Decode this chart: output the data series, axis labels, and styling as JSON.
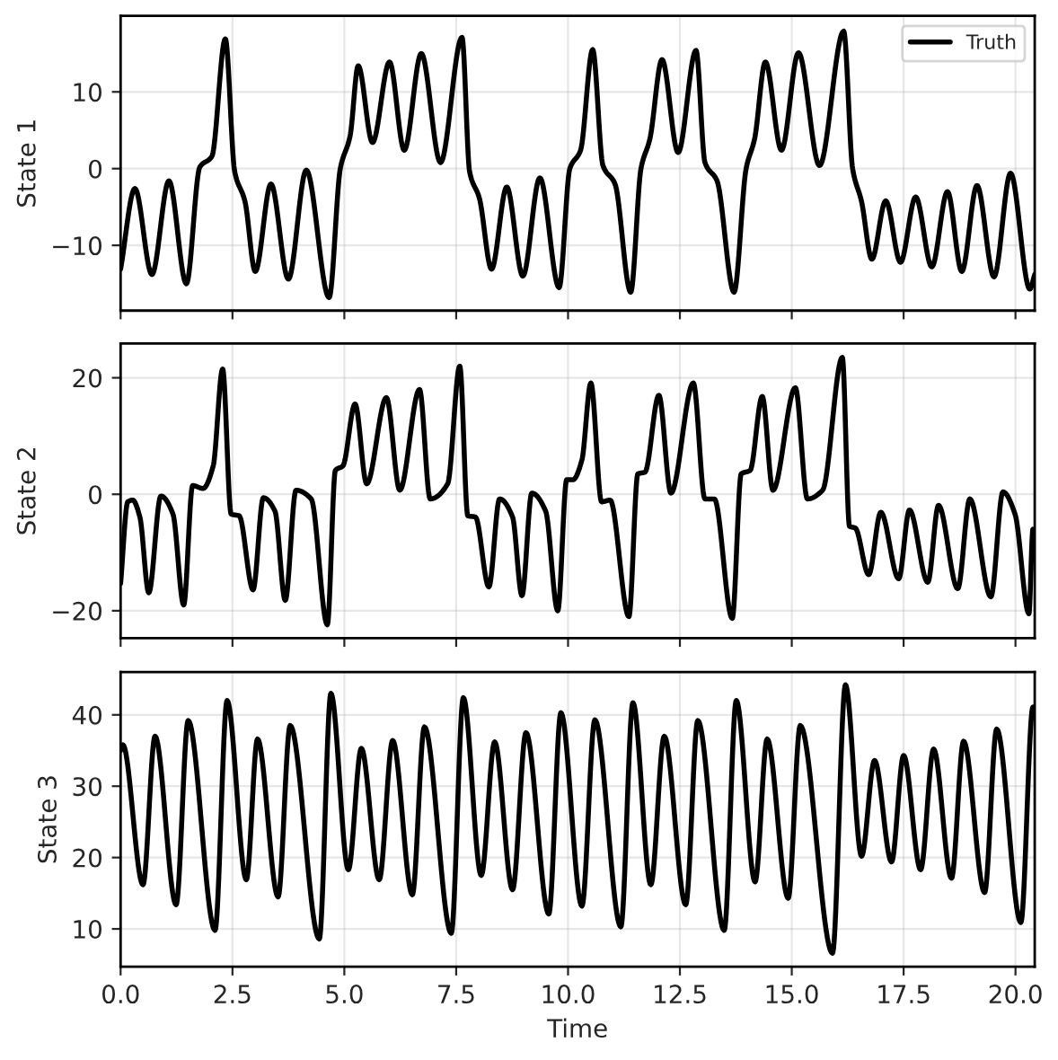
{
  "chart_data": [
    {
      "type": "line",
      "ylabel": "State 1",
      "xlim": [
        0,
        20.43
      ],
      "ylim": [
        -18.5,
        19.9
      ],
      "yticks": [
        -10,
        0,
        10
      ],
      "xticks": [
        {
          "value": 0,
          "label": null
        },
        {
          "value": 2.5,
          "label": null
        },
        {
          "value": 5,
          "label": null
        },
        {
          "value": 7.5,
          "label": null
        },
        {
          "value": 10,
          "label": null
        },
        {
          "value": 12.5,
          "label": null
        },
        {
          "value": 15,
          "label": null
        },
        {
          "value": 17.5,
          "label": null
        },
        {
          "value": 20,
          "label": null
        }
      ],
      "grid": true,
      "tick_labels": "y",
      "legend": "top right",
      "x": [
        0,
        0.32,
        0.7,
        1.08,
        1.47,
        1.77,
        2.04,
        2.34,
        2.55,
        2.78,
        3.01,
        3.36,
        3.75,
        4.15,
        4.66,
        4.91,
        5.13,
        5.31,
        5.63,
        6.01,
        6.34,
        6.72,
        7.15,
        7.63,
        7.8,
        8.02,
        8.29,
        8.63,
        8.99,
        9.37,
        9.8,
        10.04,
        10.28,
        10.55,
        10.78,
        11.05,
        11.4,
        11.63,
        11.83,
        12.1,
        12.46,
        12.86,
        13.06,
        13.33,
        13.71,
        13.98,
        14.17,
        14.41,
        14.77,
        15.15,
        15.62,
        16.16,
        16.36,
        16.56,
        16.79,
        17.1,
        17.43,
        17.77,
        18.13,
        18.48,
        18.8,
        19.14,
        19.52,
        19.89,
        20.32,
        20.43
      ],
      "series": [
        {
          "name": "Truth",
          "color": "#000000",
          "values": [
            -13.1,
            -2.6,
            -13.8,
            -1.6,
            -15.0,
            0.2,
            1.6,
            16.9,
            -0.4,
            -4.3,
            -13.4,
            -2.0,
            -14.4,
            -0.2,
            -16.8,
            0,
            4.3,
            13.4,
            3.4,
            13.9,
            2.4,
            15.0,
            0.8,
            17.1,
            -0.4,
            -3.9,
            -13.1,
            -2.4,
            -14.0,
            -1.2,
            -15.5,
            0,
            2.4,
            15.5,
            0.4,
            -2.0,
            -16.1,
            0,
            3.9,
            14.2,
            2.1,
            15.4,
            0.8,
            -1.6,
            -16.1,
            0,
            3.9,
            13.9,
            2.4,
            15.1,
            0.4,
            17.9,
            0,
            -4.3,
            -11.8,
            -4.2,
            -12.2,
            -3.7,
            -12.8,
            -3.0,
            -13.4,
            -2.2,
            -14.1,
            -0.6,
            -15.7,
            -13.8
          ]
        }
      ]
    },
    {
      "type": "line",
      "ylabel": "State 2",
      "xlim": [
        0,
        20.43
      ],
      "ylim": [
        -24.7,
        25.9
      ],
      "yticks": [
        -20,
        0,
        20
      ],
      "xticks": [
        {
          "value": 0,
          "label": null
        },
        {
          "value": 2.5,
          "label": null
        },
        {
          "value": 5,
          "label": null
        },
        {
          "value": 7.5,
          "label": null
        },
        {
          "value": 10,
          "label": null
        },
        {
          "value": 12.5,
          "label": null
        },
        {
          "value": 15,
          "label": null
        },
        {
          "value": 17.5,
          "label": null
        },
        {
          "value": 20,
          "label": null
        }
      ],
      "grid": true,
      "tick_labels": "y",
      "x": [
        0,
        0.16,
        0.27,
        0.43,
        0.63,
        0.9,
        1.17,
        1.41,
        1.61,
        1.84,
        2.07,
        2.28,
        2.47,
        2.65,
        2.96,
        3.19,
        3.45,
        3.68,
        3.92,
        4.26,
        4.62,
        4.8,
        4.97,
        5.24,
        5.5,
        5.94,
        6.24,
        6.68,
        6.92,
        7.31,
        7.58,
        7.76,
        7.93,
        8.23,
        8.47,
        8.76,
        8.97,
        9.19,
        9.5,
        9.77,
        9.97,
        10.11,
        10.31,
        10.51,
        10.75,
        10.94,
        11.36,
        11.56,
        11.72,
        12.03,
        12.3,
        12.8,
        13.06,
        13.27,
        13.67,
        13.87,
        14.07,
        14.34,
        14.58,
        15.08,
        15.35,
        15.69,
        16.13,
        16.29,
        16.42,
        16.72,
        16.99,
        17.39,
        17.63,
        18.04,
        18.28,
        18.71,
        18.98,
        19.45,
        19.72,
        19.99,
        20.3,
        20.39,
        20.43
      ],
      "series": [
        {
          "color": "#000000",
          "values": [
            -15.3,
            -1.3,
            -1.0,
            -3.9,
            -16.9,
            -0.3,
            -3.4,
            -19.0,
            1.5,
            1.0,
            4.9,
            21.5,
            -3.4,
            -3.7,
            -16.4,
            -0.6,
            -2.9,
            -18.2,
            0.7,
            -0.8,
            -22.4,
            4.1,
            4.9,
            15.5,
            1.8,
            16.6,
            0.7,
            18.0,
            -0.8,
            1.8,
            22.0,
            -3.7,
            -3.9,
            -15.9,
            -0.8,
            -3.9,
            -17.4,
            0.2,
            -2.9,
            -20.0,
            2.5,
            2.5,
            5.9,
            19.1,
            -1.3,
            -1.0,
            -21.0,
            3.5,
            3.8,
            17.0,
            0.2,
            19.1,
            -0.8,
            -0.8,
            -21.3,
            3.5,
            4.1,
            16.8,
            0.7,
            18.3,
            -0.8,
            0.7,
            23.5,
            -5.5,
            -5.8,
            -13.8,
            -3.1,
            -14.5,
            -2.7,
            -15.1,
            -1.9,
            -16.2,
            -0.8,
            -17.6,
            0.4,
            -3.4,
            -20.5,
            -6.0,
            -6.2
          ]
        }
      ]
    },
    {
      "type": "line",
      "ylabel": "State 3",
      "xlabel": "Time",
      "xlim": [
        0,
        20.43
      ],
      "ylim": [
        4.7,
        46.0
      ],
      "yticks": [
        10,
        20,
        30,
        40
      ],
      "xticks": [
        {
          "value": 0,
          "label": "0.0"
        },
        {
          "value": 2.5,
          "label": "2.5"
        },
        {
          "value": 5,
          "label": "5.0"
        },
        {
          "value": 7.5,
          "label": "7.5"
        },
        {
          "value": 10,
          "label": "10.0"
        },
        {
          "value": 12.5,
          "label": "12.5"
        },
        {
          "value": 15,
          "label": "15.0"
        },
        {
          "value": 17.5,
          "label": "17.5"
        },
        {
          "value": 20,
          "label": "20.0"
        }
      ],
      "grid": true,
      "x": [
        0,
        0.05,
        0.5,
        0.77,
        1.24,
        1.51,
        2.11,
        2.38,
        2.81,
        3.06,
        3.52,
        3.79,
        4.44,
        4.7,
        5.09,
        5.38,
        5.78,
        6.08,
        6.52,
        6.79,
        7.39,
        7.66,
        8.06,
        8.36,
        8.76,
        9.06,
        9.57,
        9.84,
        10.31,
        10.6,
        11.18,
        11.45,
        11.85,
        12.15,
        12.63,
        12.9,
        13.49,
        13.76,
        14.18,
        14.45,
        14.92,
        15.19,
        15.91,
        16.2,
        16.56,
        16.85,
        17.23,
        17.5,
        17.88,
        18.17,
        18.57,
        18.84,
        19.31,
        19.58,
        20.12,
        20.39,
        20.43
      ],
      "series": [
        {
          "color": "#000000",
          "values": [
            35.0,
            35.8,
            16.2,
            37.0,
            13.4,
            39.2,
            9.8,
            42.0,
            16.9,
            36.6,
            14.5,
            38.5,
            8.6,
            43.0,
            18.3,
            35.3,
            16.9,
            36.4,
            14.8,
            38.3,
            9.4,
            42.4,
            17.5,
            36.2,
            15.5,
            37.5,
            12.1,
            40.3,
            13.2,
            39.3,
            10.3,
            41.7,
            16.2,
            37.0,
            13.4,
            39.2,
            9.8,
            42.0,
            16.6,
            36.6,
            14.3,
            38.5,
            6.6,
            44.2,
            20.2,
            33.6,
            19.4,
            34.3,
            18.3,
            35.2,
            17.1,
            36.3,
            15.1,
            38.0,
            10.9,
            41.1,
            41.0
          ]
        }
      ]
    }
  ]
}
